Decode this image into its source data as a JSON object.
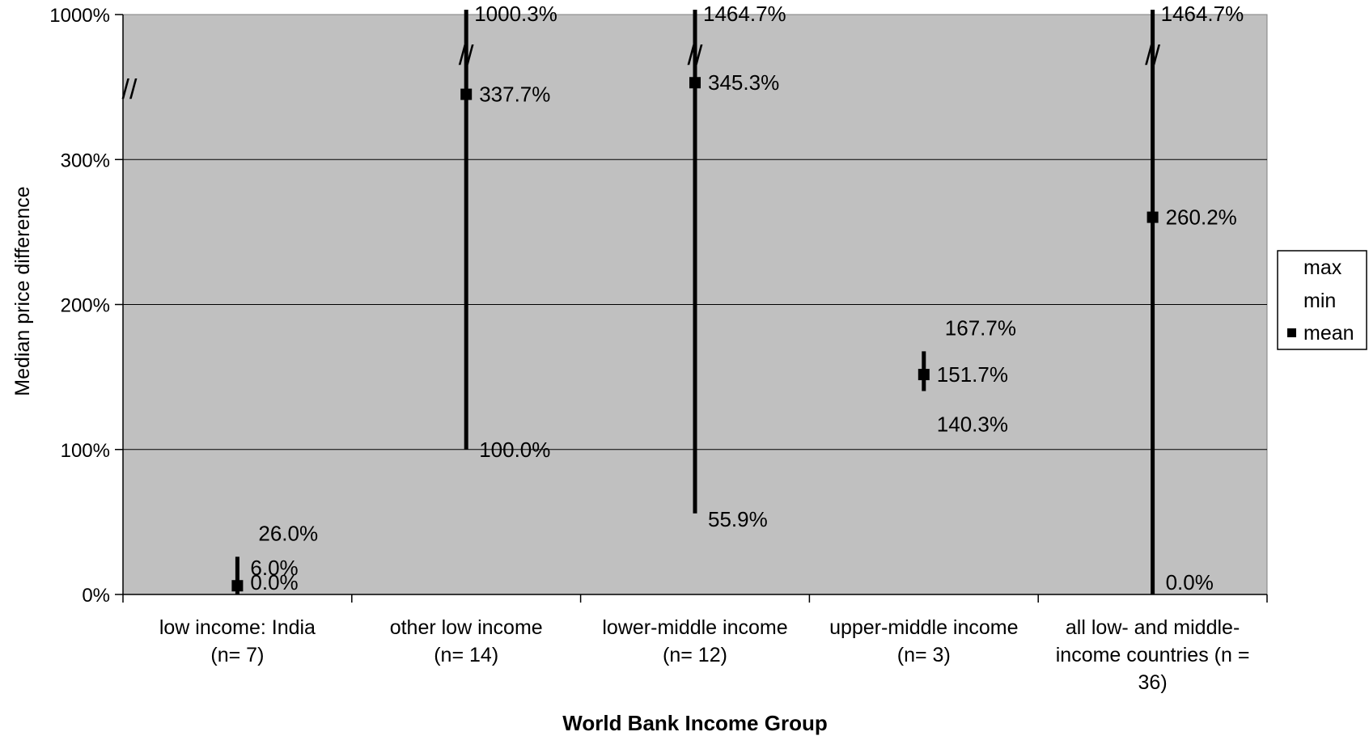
{
  "chart_data": {
    "type": "high-low-mean",
    "xlabel": "World Bank Income Group",
    "ylabel": "Median price difference",
    "axis_break": "//",
    "y_ticks": [
      {
        "value": 0,
        "label": "0%"
      },
      {
        "value": 100,
        "label": "100%"
      },
      {
        "value": 200,
        "label": "200%"
      },
      {
        "value": 300,
        "label": "300%"
      },
      {
        "value": 1000,
        "label": "1000%"
      }
    ],
    "categories": [
      {
        "lines": [
          "low income: India",
          "(n= 7)"
        ],
        "max": 26.0,
        "min": 0.0,
        "mean": 6.0,
        "max_label": "26.0%",
        "min_label": "0.0%",
        "mean_label": "6.0%",
        "break": false
      },
      {
        "lines": [
          "other low income",
          "(n= 14)"
        ],
        "max": 1000.3,
        "min": 100.0,
        "mean": 337.7,
        "max_label": "1000.3%",
        "min_label": "100.0%",
        "mean_label": "337.7%",
        "break": true
      },
      {
        "lines": [
          "lower-middle income",
          "(n= 12)"
        ],
        "max": 1464.7,
        "min": 55.9,
        "mean": 345.3,
        "max_label": "1464.7%",
        "min_label": "55.9%",
        "mean_label": "345.3%",
        "break": true
      },
      {
        "lines": [
          "upper-middle income",
          "(n= 3)"
        ],
        "max": 167.7,
        "min": 140.3,
        "mean": 151.7,
        "max_label": "167.7%",
        "min_label": "140.3%",
        "mean_label": "151.7%",
        "break": false
      },
      {
        "lines": [
          "all low- and middle-",
          "income countries (n =",
          "36)"
        ],
        "max": 1464.7,
        "min": 0.0,
        "mean": 260.2,
        "max_label": "1464.7%",
        "min_label": "0.0%",
        "mean_label": "260.2%",
        "break": true
      }
    ],
    "legend": {
      "position": "right",
      "entries": [
        "max",
        "min",
        "mean"
      ]
    },
    "grid": true,
    "colors": {
      "plot_background": "#c0c0c0",
      "marks": "#000000",
      "gridlines": "#000000"
    }
  }
}
